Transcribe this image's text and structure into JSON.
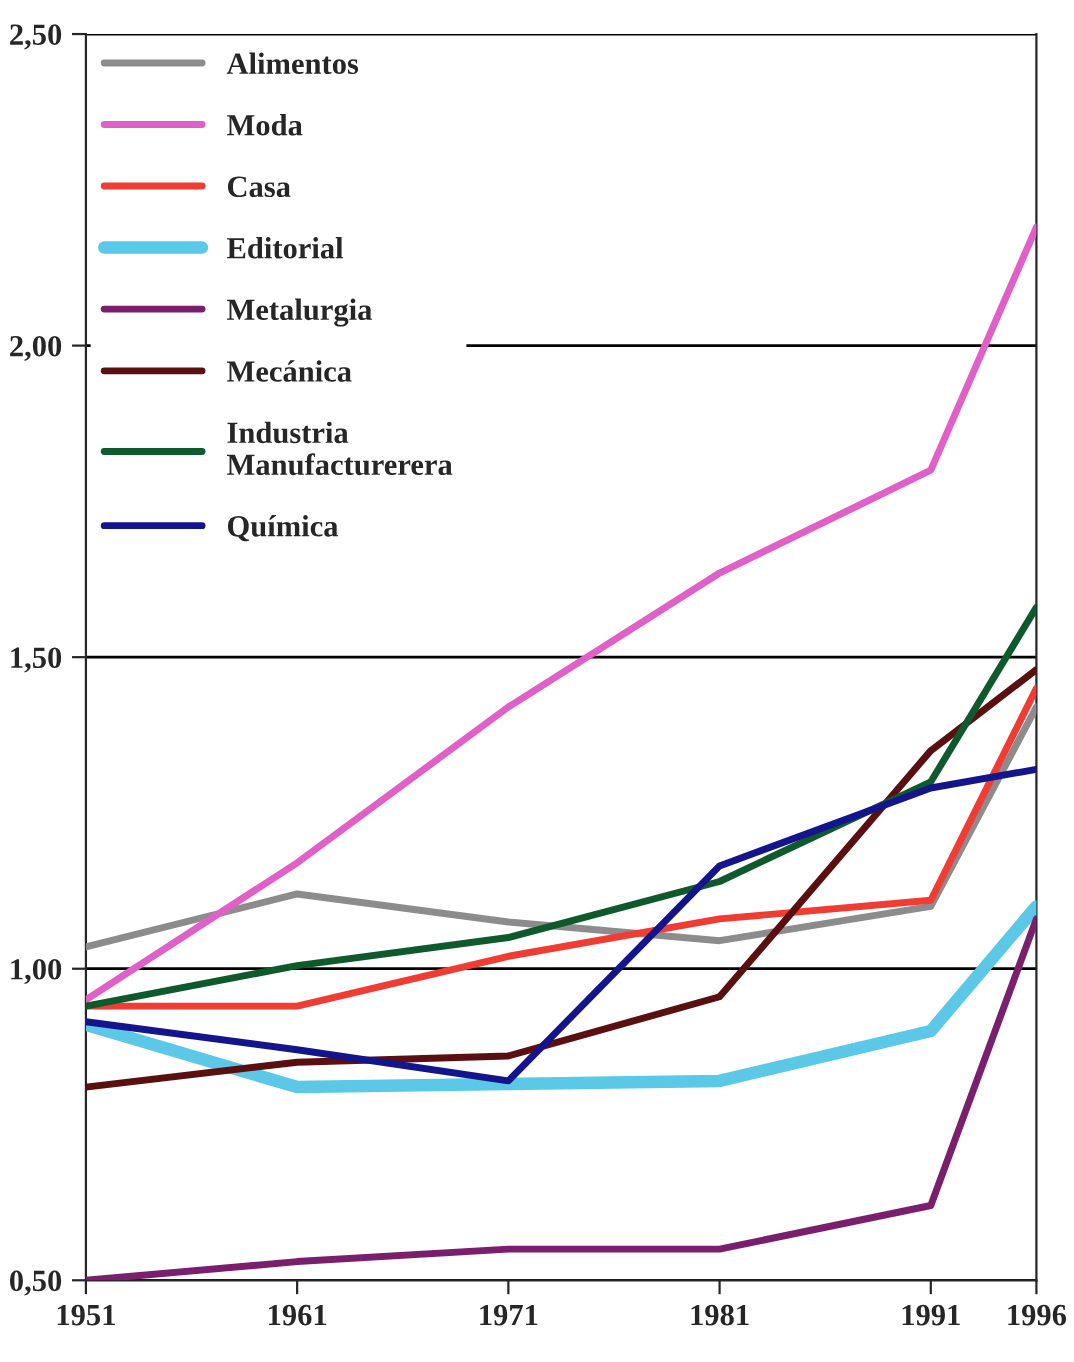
{
  "chart_data": {
    "type": "line",
    "x": [
      1951,
      1961,
      1971,
      1981,
      1991,
      1996
    ],
    "series": [
      {
        "name": "Alimentos",
        "color": "#8c8c8c",
        "values": [
          1.035,
          1.12,
          1.075,
          1.045,
          1.1,
          1.42
        ]
      },
      {
        "name": "Moda",
        "color": "#e060c8",
        "values": [
          0.95,
          1.17,
          1.42,
          1.635,
          1.8,
          2.19
        ]
      },
      {
        "name": "Casa",
        "color": "#f03c32",
        "values": [
          0.94,
          0.94,
          1.02,
          1.08,
          1.11,
          1.45
        ]
      },
      {
        "name": "Editorial",
        "color": "#5ac8e6",
        "values": [
          0.91,
          0.81,
          0.815,
          0.82,
          0.9,
          1.1
        ]
      },
      {
        "name": "Metalurgia",
        "color": "#7a1e6e",
        "values": [
          0.5,
          0.53,
          0.55,
          0.55,
          0.62,
          1.08
        ]
      },
      {
        "name": "Mecánica",
        "color": "#5a1010",
        "values": [
          0.81,
          0.85,
          0.86,
          0.955,
          1.35,
          1.48
        ]
      },
      {
        "name": "Industria\nManufacturerera",
        "color": "#0f5a2d",
        "values": [
          0.94,
          1.005,
          1.05,
          1.14,
          1.3,
          1.58
        ]
      },
      {
        "name": "Química",
        "color": "#14148c",
        "values": [
          0.915,
          0.87,
          0.82,
          1.165,
          1.29,
          1.32
        ]
      }
    ],
    "xlim": [
      1951,
      1996
    ],
    "xticks": [
      1951,
      1961,
      1971,
      1981,
      1991,
      1996
    ],
    "ylim": [
      0.5,
      2.5
    ],
    "yticks": [
      {
        "value": 0.5,
        "label": "0,50"
      },
      {
        "value": 1.0,
        "label": "1,00"
      },
      {
        "value": 1.5,
        "label": "1,50"
      },
      {
        "value": 2.0,
        "label": "2,00"
      },
      {
        "value": 2.5,
        "label": "2,50"
      }
    ],
    "grid": "y",
    "legend": "top left",
    "marker": "none",
    "line_style": "solid"
  }
}
